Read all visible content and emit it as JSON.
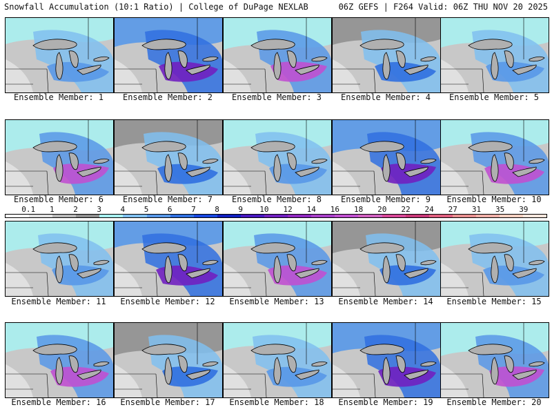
{
  "header": {
    "left_title": "Snowfall Accumulation (10:1 Ratio) | College of DuPage NEXLAB",
    "right_title": "06Z GEFS | F264 Valid: 06Z THU NOV 20 2025"
  },
  "members": [
    {
      "label": "Ensemble Member: 1"
    },
    {
      "label": "Ensemble Member: 2"
    },
    {
      "label": "Ensemble Member: 3"
    },
    {
      "label": "Ensemble Member: 4"
    },
    {
      "label": "Ensemble Member: 5"
    },
    {
      "label": "Ensemble Member: 6"
    },
    {
      "label": "Ensemble Member: 7"
    },
    {
      "label": "Ensemble Member: 8"
    },
    {
      "label": "Ensemble Member: 9"
    },
    {
      "label": "Ensemble Member: 10"
    },
    {
      "label": "Ensemble Member: 11"
    },
    {
      "label": "Ensemble Member: 12"
    },
    {
      "label": "Ensemble Member: 13"
    },
    {
      "label": "Ensemble Member: 14"
    },
    {
      "label": "Ensemble Member: 15"
    },
    {
      "label": "Ensemble Member: 16"
    },
    {
      "label": "Ensemble Member: 17"
    },
    {
      "label": "Ensemble Member: 18"
    },
    {
      "label": "Ensemble Member: 19"
    },
    {
      "label": "Ensemble Member: 20"
    }
  ],
  "color_scale": {
    "labels": [
      "0.1",
      "1",
      "2",
      "3",
      "4",
      "5",
      "6",
      "7",
      "8",
      "9",
      "10",
      "12",
      "14",
      "16",
      "18",
      "20",
      "22",
      "24",
      "27",
      "31",
      "35",
      "39"
    ],
    "colors": [
      "#ffffff",
      "#e0e0e0",
      "#b8b8b8",
      "#909090",
      "#a8f0f0",
      "#80c0f0",
      "#5898e8",
      "#3070e0",
      "#1848e0",
      "#1020c0",
      "#4818c0",
      "#7020c0",
      "#9028c0",
      "#a840c8",
      "#c050d0",
      "#d060c0",
      "#d84898",
      "#c83878",
      "#e06080",
      "#e89090",
      "#f0b0a8",
      "#f8d0c0",
      "#fbe6dc"
    ]
  },
  "colors": {
    "land": "#c8c8c8",
    "lake": "#b0b0b0",
    "border": "#000000"
  }
}
